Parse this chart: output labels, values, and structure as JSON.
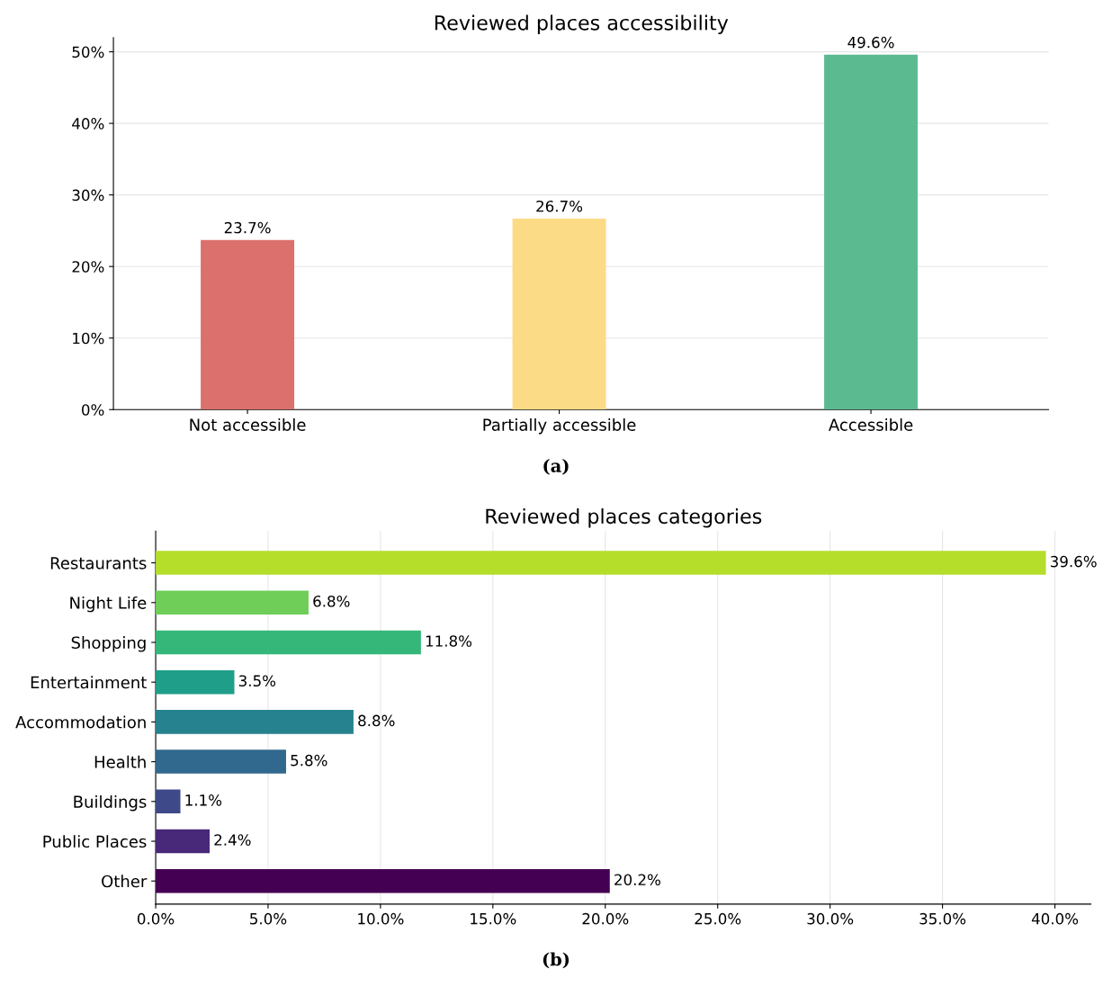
{
  "chart_data": [
    {
      "type": "bar",
      "title": "Reviewed places accessibility",
      "categories": [
        "Not accessible",
        "Partially accessible",
        "Accessible"
      ],
      "values": [
        23.7,
        26.7,
        49.6
      ],
      "value_labels": [
        "23.7%",
        "26.7%",
        "49.6%"
      ],
      "colors": [
        "#db706c",
        "#fbdb86",
        "#5cba90"
      ],
      "ylim": [
        0,
        52
      ],
      "yticks": [
        {
          "value": 0,
          "label": "0%"
        },
        {
          "value": 10,
          "label": "10%"
        },
        {
          "value": 20,
          "label": "20%"
        },
        {
          "value": 30,
          "label": "30%"
        },
        {
          "value": 40,
          "label": "40%"
        },
        {
          "value": 50,
          "label": "50%"
        }
      ],
      "grid": "y",
      "annotations": [
        "(a)"
      ]
    },
    {
      "type": "bar",
      "orientation": "horizontal",
      "title": "Reviewed places categories",
      "categories": [
        "Restaurants",
        "Night Life",
        "Shopping",
        "Entertainment",
        "Accommodation",
        "Health",
        "Buildings",
        "Public Places",
        "Other"
      ],
      "values": [
        39.6,
        6.8,
        11.8,
        3.5,
        8.8,
        5.8,
        1.1,
        2.4,
        20.2
      ],
      "value_labels": [
        "39.6%",
        "6.8%",
        "11.8%",
        "3.5%",
        "8.8%",
        "5.8%",
        "1.1%",
        "2.4%",
        "20.2%"
      ],
      "colors": [
        "#b5de2b",
        "#6ece58",
        "#35b779",
        "#1f9e89",
        "#26828e",
        "#31688e",
        "#3e4989",
        "#482878",
        "#440154"
      ],
      "xlim": [
        0,
        41.6
      ],
      "xticks": [
        {
          "value": 0,
          "label": "0.0%"
        },
        {
          "value": 5,
          "label": "5.0%"
        },
        {
          "value": 10,
          "label": "10.0%"
        },
        {
          "value": 15,
          "label": "15.0%"
        },
        {
          "value": 20,
          "label": "20.0%"
        },
        {
          "value": 25,
          "label": "25.0%"
        },
        {
          "value": 30,
          "label": "30.0%"
        },
        {
          "value": 35,
          "label": "35.0%"
        },
        {
          "value": 40,
          "label": "40.0%"
        }
      ],
      "grid": "x",
      "annotations": [
        "(b)"
      ]
    }
  ]
}
